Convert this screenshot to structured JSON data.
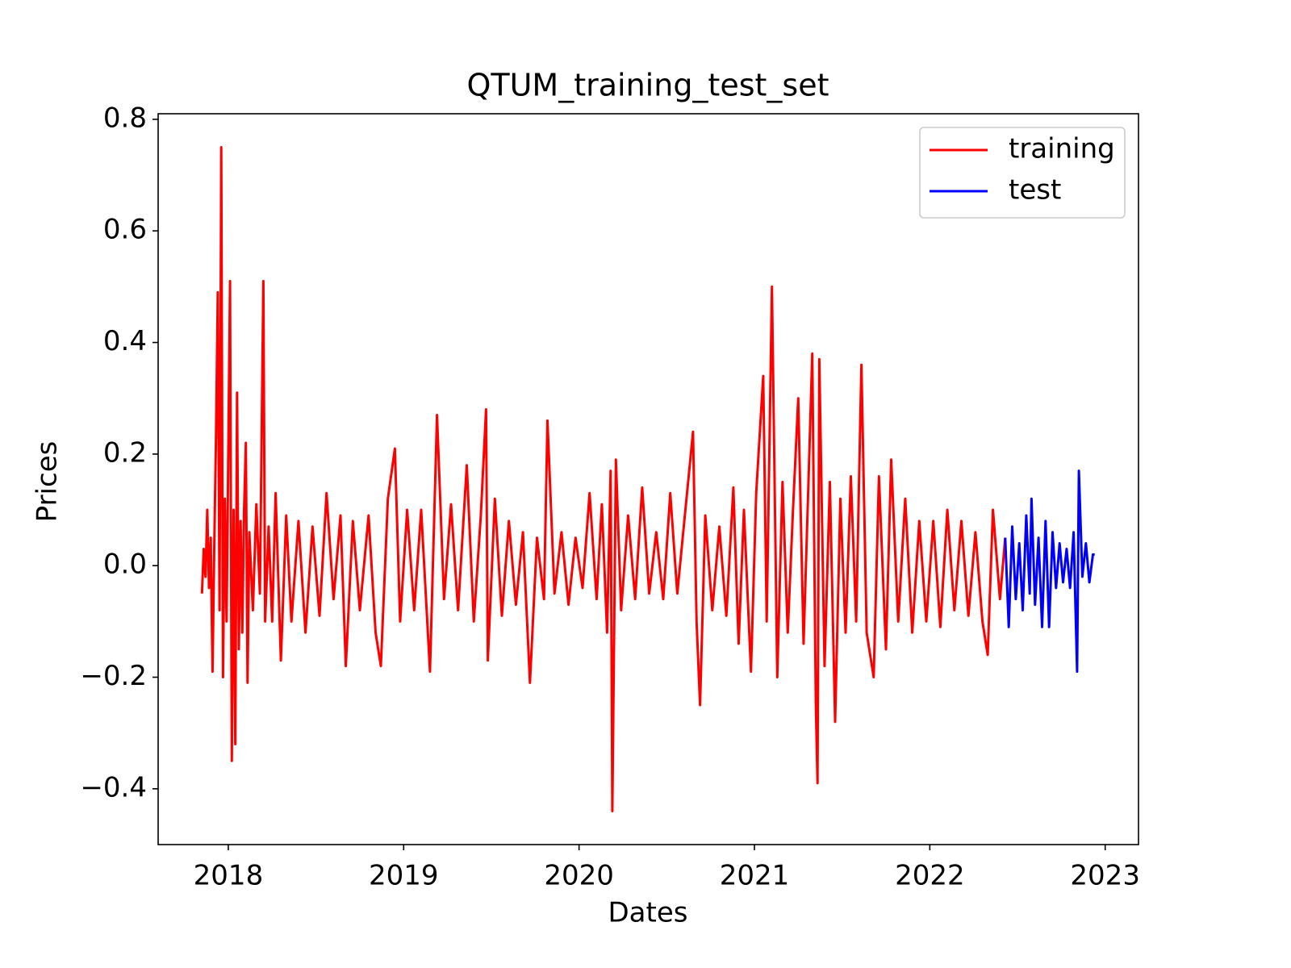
{
  "chart_data": {
    "type": "line",
    "title": "QTUM_training_test_set",
    "x_label": "Dates",
    "y_label": "Prices",
    "xlim": [
      2017.6,
      2023.19
    ],
    "xticks": [
      2018,
      2019,
      2020,
      2021,
      2022,
      2023
    ],
    "ylim": [
      -0.5,
      0.81
    ],
    "yticks": [
      {
        "value": -0.4,
        "label": "−0.4"
      },
      {
        "value": -0.2,
        "label": "−0.2"
      },
      {
        "value": 0,
        "label": "0.0"
      },
      0.2,
      0.4,
      0.6,
      0.8
    ],
    "legend": "upper right",
    "series": [
      {
        "name": "training",
        "color": "#ff0000",
        "x": [
          2017.85,
          2017.86,
          2017.87,
          2017.88,
          2017.89,
          2017.9,
          2017.91,
          2017.92,
          2017.93,
          2017.94,
          2017.95,
          2017.96,
          2017.97,
          2017.98,
          2017.99,
          2018.0,
          2018.01,
          2018.02,
          2018.03,
          2018.04,
          2018.05,
          2018.06,
          2018.07,
          2018.08,
          2018.09,
          2018.1,
          2018.11,
          2018.12,
          2018.14,
          2018.16,
          2018.18,
          2018.2,
          2018.21,
          2018.23,
          2018.25,
          2018.27,
          2018.3,
          2018.33,
          2018.36,
          2018.4,
          2018.44,
          2018.48,
          2018.52,
          2018.56,
          2018.6,
          2018.64,
          2018.67,
          2018.71,
          2018.75,
          2018.8,
          2018.84,
          2018.87,
          2018.91,
          2018.95,
          2018.98,
          2019.02,
          2019.06,
          2019.1,
          2019.15,
          2019.19,
          2019.23,
          2019.27,
          2019.31,
          2019.36,
          2019.4,
          2019.44,
          2019.47,
          2019.48,
          2019.52,
          2019.56,
          2019.6,
          2019.64,
          2019.68,
          2019.72,
          2019.76,
          2019.8,
          2019.82,
          2019.86,
          2019.9,
          2019.94,
          2019.98,
          2020.02,
          2020.06,
          2020.1,
          2020.13,
          2020.16,
          2020.18,
          2020.19,
          2020.21,
          2020.24,
          2020.28,
          2020.32,
          2020.36,
          2020.4,
          2020.44,
          2020.48,
          2020.52,
          2020.56,
          2020.6,
          2020.65,
          2020.67,
          2020.69,
          2020.72,
          2020.76,
          2020.8,
          2020.84,
          2020.88,
          2020.91,
          2020.94,
          2020.98,
          2021.01,
          2021.05,
          2021.07,
          2021.1,
          2021.13,
          2021.16,
          2021.19,
          2021.22,
          2021.25,
          2021.28,
          2021.31,
          2021.33,
          2021.35,
          2021.36,
          2021.37,
          2021.4,
          2021.43,
          2021.46,
          2021.49,
          2021.52,
          2021.55,
          2021.58,
          2021.61,
          2021.64,
          2021.68,
          2021.71,
          2021.75,
          2021.78,
          2021.82,
          2021.86,
          2021.9,
          2021.94,
          2021.98,
          2022.02,
          2022.06,
          2022.1,
          2022.14,
          2022.18,
          2022.22,
          2022.26,
          2022.3,
          2022.33,
          2022.36,
          2022.4,
          2022.43
        ],
        "values": [
          -0.05,
          0.03,
          -0.02,
          0.1,
          -0.04,
          0.05,
          -0.19,
          0.04,
          0.23,
          0.49,
          -0.08,
          0.75,
          -0.2,
          0.12,
          -0.1,
          0.2,
          0.51,
          -0.35,
          0.1,
          -0.32,
          0.31,
          -0.15,
          0.08,
          -0.12,
          0.1,
          0.22,
          -0.21,
          0.06,
          -0.08,
          0.11,
          -0.05,
          0.51,
          -0.1,
          0.07,
          -0.1,
          0.13,
          -0.17,
          0.09,
          -0.1,
          0.08,
          -0.12,
          0.07,
          -0.09,
          0.13,
          -0.06,
          0.09,
          -0.18,
          0.08,
          -0.08,
          0.09,
          -0.12,
          -0.18,
          0.12,
          0.21,
          -0.1,
          0.1,
          -0.08,
          0.1,
          -0.19,
          0.27,
          -0.06,
          0.11,
          -0.08,
          0.18,
          -0.1,
          0.09,
          0.28,
          -0.17,
          0.12,
          -0.09,
          0.08,
          -0.07,
          0.06,
          -0.21,
          0.05,
          -0.06,
          0.26,
          -0.05,
          0.06,
          -0.07,
          0.05,
          -0.04,
          0.13,
          -0.06,
          0.11,
          -0.12,
          0.17,
          -0.44,
          0.19,
          -0.08,
          0.09,
          -0.06,
          0.14,
          -0.05,
          0.06,
          -0.06,
          0.13,
          -0.05,
          0.08,
          0.24,
          -0.1,
          -0.25,
          0.09,
          -0.08,
          0.07,
          -0.09,
          0.14,
          -0.14,
          0.1,
          -0.19,
          0.13,
          0.34,
          -0.1,
          0.5,
          -0.2,
          0.15,
          -0.12,
          0.1,
          0.3,
          -0.14,
          0.17,
          0.38,
          -0.25,
          -0.39,
          0.37,
          -0.18,
          0.15,
          -0.28,
          0.12,
          -0.12,
          0.16,
          -0.1,
          0.36,
          -0.12,
          -0.2,
          0.16,
          -0.15,
          0.19,
          -0.1,
          0.12,
          -0.12,
          0.08,
          -0.1,
          0.08,
          -0.11,
          0.1,
          -0.08,
          0.08,
          -0.09,
          0.06,
          -0.1,
          -0.16,
          0.1,
          -0.06,
          0.05
        ]
      },
      {
        "name": "test",
        "color": "#0000ff",
        "x": [
          2022.43,
          2022.45,
          2022.47,
          2022.49,
          2022.51,
          2022.53,
          2022.55,
          2022.57,
          2022.58,
          2022.6,
          2022.62,
          2022.64,
          2022.66,
          2022.68,
          2022.7,
          2022.72,
          2022.74,
          2022.76,
          2022.78,
          2022.8,
          2022.82,
          2022.84,
          2022.85,
          2022.87,
          2022.89,
          2022.91,
          2022.93,
          2022.94
        ],
        "values": [
          0.05,
          -0.11,
          0.07,
          -0.06,
          0.04,
          -0.08,
          0.09,
          -0.05,
          0.12,
          -0.07,
          0.05,
          -0.11,
          0.08,
          -0.11,
          0.06,
          -0.04,
          0.04,
          -0.03,
          0.03,
          -0.04,
          0.06,
          -0.19,
          0.17,
          -0.02,
          0.04,
          -0.03,
          0.02,
          0.02
        ]
      }
    ]
  }
}
